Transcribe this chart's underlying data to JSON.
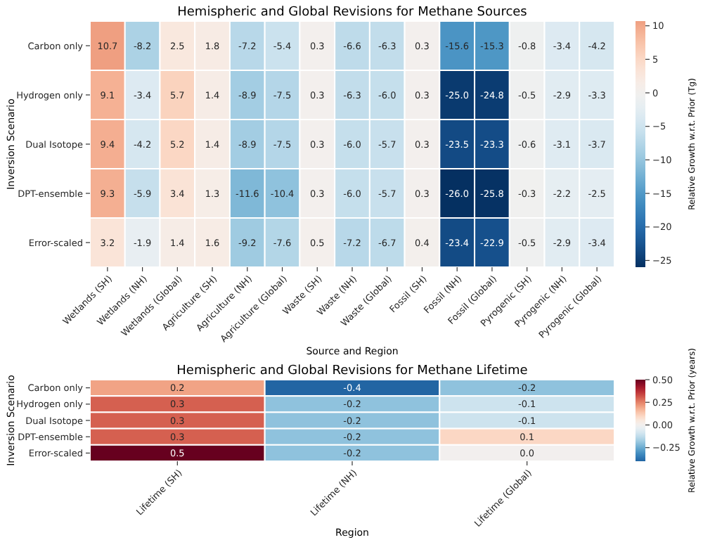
{
  "chart_data": [
    {
      "type": "heatmap",
      "title": "Hemispheric and Global Revisions for Methane Sources",
      "xlabel": "Source and Region",
      "ylabel": "Inversion Scenario",
      "clabel": "Relative Growth w.r.t. Prior (Tg)",
      "categories": [
        "Wetlands (SH)",
        "Wetlands (NH)",
        "Wetlands (Global)",
        "Agriculture (SH)",
        "Agriculture (NH)",
        "Agriculture (Global)",
        "Waste (SH)",
        "Waste (NH)",
        "Waste (Global)",
        "Fossil (SH)",
        "Fossil (NH)",
        "Fossil (Global)",
        "Pyrogenic (SH)",
        "Pyrogenic (NH)",
        "Pyrogenic (Global)"
      ],
      "y_categories": [
        "Carbon only",
        "Hydrogen only",
        "Dual Isotope",
        "DPT-ensemble",
        "Error-scaled"
      ],
      "cells": [
        [
          10.7,
          -8.2,
          2.5,
          1.8,
          -7.2,
          -5.4,
          0.3,
          -6.6,
          -6.3,
          0.3,
          -15.6,
          -15.3,
          -0.8,
          -3.4,
          -4.2
        ],
        [
          9.1,
          -3.4,
          5.7,
          1.4,
          -8.9,
          -7.5,
          0.3,
          -6.3,
          -6.0,
          0.3,
          -25.0,
          -24.8,
          -0.5,
          -2.9,
          -3.3
        ],
        [
          9.4,
          -4.2,
          5.2,
          1.4,
          -8.9,
          -7.5,
          0.3,
          -6.0,
          -5.7,
          0.3,
          -23.5,
          -23.3,
          -0.6,
          -3.1,
          -3.7
        ],
        [
          9.3,
          -5.9,
          3.4,
          1.3,
          -11.6,
          -10.4,
          0.3,
          -6.0,
          -5.7,
          0.3,
          -26.0,
          -25.8,
          -0.3,
          -2.2,
          -2.5
        ],
        [
          3.2,
          -1.9,
          1.4,
          1.6,
          -9.2,
          -7.6,
          0.5,
          -7.2,
          -6.7,
          0.4,
          -23.4,
          -22.9,
          -0.5,
          -2.9,
          -3.4
        ]
      ],
      "cell_labels": [
        [
          "10.7",
          "-8.2",
          "2.5",
          "1.8",
          "-7.2",
          "-5.4",
          "0.3",
          "-6.6",
          "-6.3",
          "0.3",
          "-15.6",
          "-15.3",
          "-0.8",
          "-3.4",
          "-4.2"
        ],
        [
          "9.1",
          "-3.4",
          "5.7",
          "1.4",
          "-8.9",
          "-7.5",
          "0.3",
          "-6.3",
          "-6.0",
          "0.3",
          "-25.0",
          "-24.8",
          "-0.5",
          "-2.9",
          "-3.3"
        ],
        [
          "9.4",
          "-4.2",
          "5.2",
          "1.4",
          "-8.9",
          "-7.5",
          "0.3",
          "-6.0",
          "-5.7",
          "0.3",
          "-23.5",
          "-23.3",
          "-0.6",
          "-3.1",
          "-3.7"
        ],
        [
          "9.3",
          "-5.9",
          "3.4",
          "1.3",
          "-11.6",
          "-10.4",
          "0.3",
          "-6.0",
          "-5.7",
          "0.3",
          "-26.0",
          "-25.8",
          "-0.3",
          "-2.2",
          "-2.5"
        ],
        [
          "3.2",
          "-1.9",
          "1.4",
          "1.6",
          "-9.2",
          "-7.6",
          "0.5",
          "-7.2",
          "-6.7",
          "0.4",
          "-23.4",
          "-22.9",
          "-0.5",
          "-2.9",
          "-3.4"
        ]
      ],
      "clim": [
        -26.0,
        10.7
      ],
      "cticks": [
        {
          "value": -25,
          "label": "−25"
        },
        {
          "value": -20,
          "label": "−20"
        },
        {
          "value": -15,
          "label": "−15"
        },
        {
          "value": -10,
          "label": "−10"
        },
        {
          "value": -5,
          "label": "−5"
        },
        0,
        5,
        10
      ]
    },
    {
      "type": "heatmap",
      "title": "Hemispheric and Global Revisions for Methane Lifetime",
      "xlabel": "Region",
      "ylabel": "Inversion Scenario",
      "clabel": "Relative Growth w.r.t. Prior (years)",
      "categories": [
        "Lifetime (SH)",
        "Lifetime (NH)",
        "Lifetime (Global)"
      ],
      "y_categories": [
        "Carbon only",
        "Hydrogen only",
        "Dual Isotope",
        "DPT-ensemble",
        "Error-scaled"
      ],
      "cells": [
        [
          0.2,
          -0.4,
          -0.2
        ],
        [
          0.3,
          -0.2,
          -0.1
        ],
        [
          0.3,
          -0.2,
          -0.1
        ],
        [
          0.3,
          -0.2,
          0.1
        ],
        [
          0.5,
          -0.2,
          0.0
        ]
      ],
      "cell_labels": [
        [
          "0.2",
          "-0.4",
          "-0.2"
        ],
        [
          "0.3",
          "-0.2",
          "-0.1"
        ],
        [
          "0.3",
          "-0.2",
          "-0.1"
        ],
        [
          "0.3",
          "-0.2",
          "0.1"
        ],
        [
          "0.5",
          "-0.2",
          "0.0"
        ]
      ],
      "clim": [
        -0.4,
        0.5
      ],
      "cticks": [
        {
          "value": -0.25,
          "label": "−0.25"
        },
        {
          "value": 0,
          "label": "0.00"
        },
        {
          "value": 0.25,
          "label": "0.25"
        },
        {
          "value": 0.5,
          "label": "0.50"
        }
      ]
    }
  ]
}
